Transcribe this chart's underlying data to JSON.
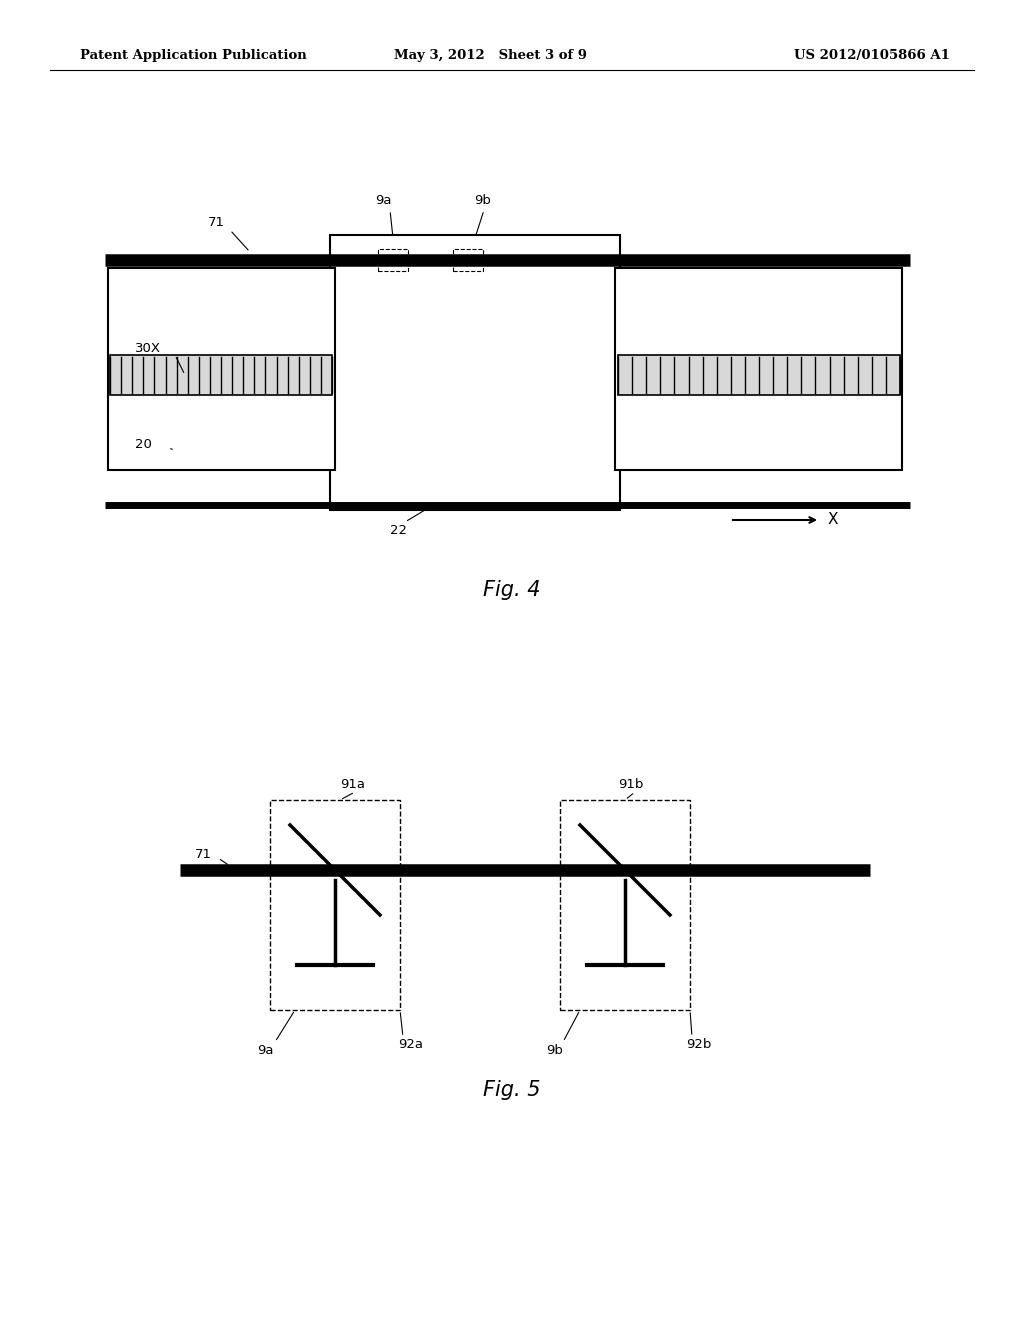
{
  "bg_color": "#ffffff",
  "header_left": "Patent Application Publication",
  "header_mid": "May 3, 2012   Sheet 3 of 9",
  "header_right": "US 2012/0105866 A1",
  "fig4_caption": "Fig. 4",
  "fig5_caption": "Fig. 5"
}
